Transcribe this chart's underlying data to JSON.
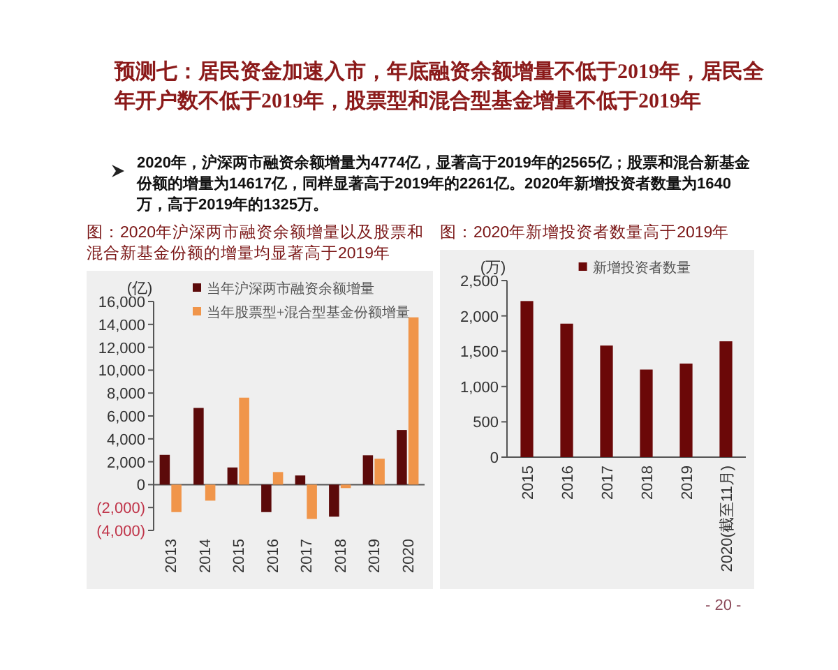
{
  "chart_data": [
    {
      "type": "other",
      "title": "预测七：居民资金加速入市，年底融资余额增量不低于2019年，居民全年开户数不低于2019年，股票型和混合型基金增量不低于2019年",
      "annotations": [
        "2020年，沪深两市融资余额增量为4774亿，显著高于2019年的2565亿；股票和混合新基金份额的增量为14617亿，同样显著高于2019年的2261亿。2020年新增投资者数量为1640万，高于2019年的1325万。",
        "- 20 -"
      ]
    },
    {
      "type": "bar",
      "title": "图：2020年沪深两市融资余额增量以及股票和混合新基金份额的增量均显著高于2019年",
      "ylabel": "(亿)",
      "categories": [
        "2013",
        "2014",
        "2015",
        "2016",
        "2017",
        "2018",
        "2019",
        "2020"
      ],
      "series": [
        {
          "name": "当年沪深两市融资余额增量",
          "color": "#5c0a0a",
          "values": [
            2600,
            6700,
            1500,
            -2400,
            800,
            -2800,
            2565,
            4774
          ]
        },
        {
          "name": "当年股票型+混合型基金份额增量",
          "color": "#f0954a",
          "values": [
            -2400,
            -1400,
            7600,
            1100,
            -3000,
            -300,
            2261,
            14617
          ]
        }
      ],
      "ylim": [
        -4000,
        16000
      ],
      "yticks": [
        {
          "value": -4000,
          "label": "(4,000)"
        },
        {
          "value": -2000,
          "label": "(2,000)"
        },
        0,
        {
          "value": 2000,
          "label": "2,000"
        },
        {
          "value": 4000,
          "label": "4,000"
        },
        {
          "value": 6000,
          "label": "6,000"
        },
        {
          "value": 8000,
          "label": "8,000"
        },
        {
          "value": 10000,
          "label": "10,000"
        },
        {
          "value": 12000,
          "label": "12,000"
        },
        {
          "value": 14000,
          "label": "14,000"
        },
        {
          "value": 16000,
          "label": "16,000"
        }
      ],
      "legend": "top left"
    },
    {
      "type": "bar",
      "title": "图：2020年新增投资者数量高于2019年",
      "ylabel": "(万)",
      "categories": [
        "2015",
        "2016",
        "2017",
        "2018",
        "2019",
        "2020(截至11月)"
      ],
      "series": [
        {
          "name": "新增投资者数量",
          "color": "#6b0808",
          "values": [
            2210,
            1890,
            1580,
            1240,
            1325,
            1640
          ]
        }
      ],
      "ylim": [
        0,
        2500
      ],
      "yticks": [
        0,
        {
          "value": 500,
          "label": "500"
        },
        {
          "value": 1000,
          "label": "1,000"
        },
        {
          "value": 1500,
          "label": "1,500"
        },
        {
          "value": 2000,
          "label": "2,000"
        },
        {
          "value": 2500,
          "label": "2,500"
        }
      ],
      "legend": "top"
    }
  ]
}
